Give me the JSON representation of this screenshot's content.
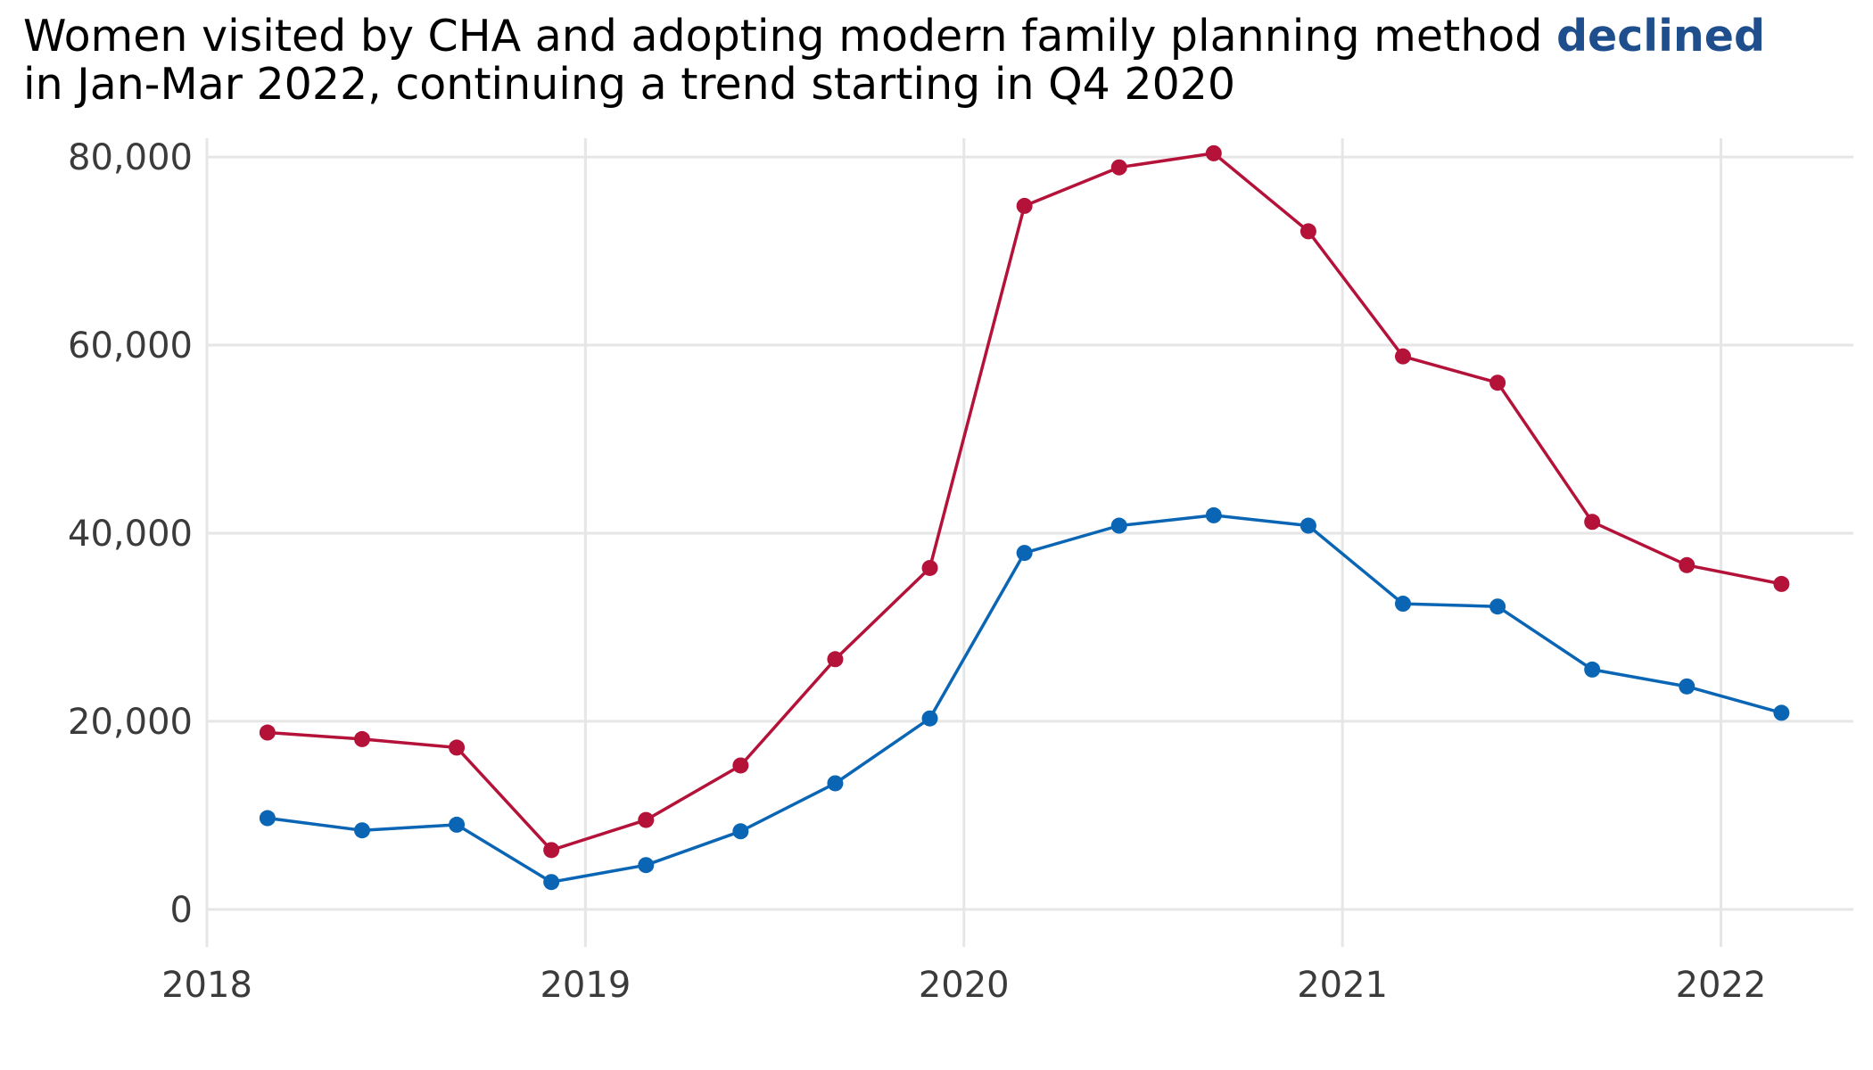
{
  "chart_data": {
    "type": "line",
    "title": {
      "part1": "Women visited by CHA and adopting modern family planning method ",
      "emphasis": "declined",
      "part2": "in Jan-Mar 2022, continuing a trend starting in Q4 2020"
    },
    "xlabel": "",
    "ylabel": "",
    "xlim": [
      2018.0,
      2022.35
    ],
    "ylim": [
      -4000,
      82000
    ],
    "x_ticks": [
      2018,
      2019,
      2020,
      2021,
      2022
    ],
    "x_tick_labels": [
      "2018",
      "2019",
      "2020",
      "2021",
      "2022"
    ],
    "y_ticks": [
      0,
      20000,
      40000,
      60000,
      80000
    ],
    "y_tick_labels": [
      "0",
      "20,000",
      "40,000",
      "60,000",
      "80,000"
    ],
    "grid": true,
    "legend": null,
    "x": [
      2018.16,
      2018.41,
      2018.66,
      2018.91,
      2019.16,
      2019.41,
      2019.66,
      2019.91,
      2020.16,
      2020.41,
      2020.66,
      2020.91,
      2021.16,
      2021.41,
      2021.66,
      2021.91,
      2022.16
    ],
    "series": [
      {
        "color": "#b5123a",
        "values": [
          18800,
          18100,
          17200,
          6300,
          9500,
          15300,
          26600,
          36300,
          74800,
          78900,
          80400,
          72100,
          58800,
          56000,
          41200,
          36600,
          34600
        ]
      },
      {
        "color": "#0a66b4",
        "values": [
          9700,
          8400,
          9000,
          2900,
          4700,
          8300,
          13400,
          20300,
          37900,
          40800,
          41900,
          40800,
          32500,
          32200,
          25500,
          23700,
          20900
        ]
      }
    ],
    "colors": {
      "grid": "#e6e6e6",
      "tick_text": "#3b3b3b",
      "title_text": "#000000",
      "emphasis_text": "#1f4e8c"
    }
  }
}
